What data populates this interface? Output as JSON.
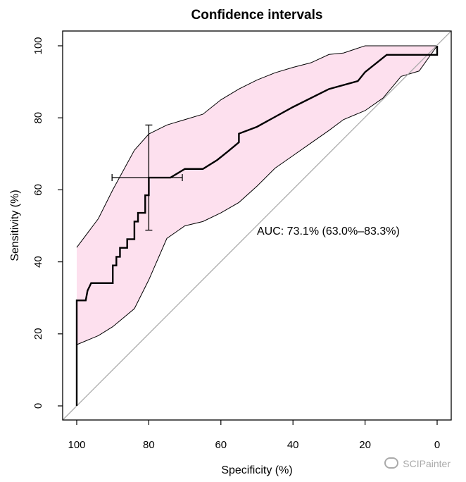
{
  "chart_data": {
    "type": "line",
    "title": "Confidence intervals",
    "xlabel": "Specificity (%)",
    "ylabel": "Sensitivity (%)",
    "xlim": [
      100,
      0
    ],
    "ylim": [
      0,
      100
    ],
    "x_reversed": true,
    "xticks": [
      100,
      80,
      60,
      40,
      20,
      0
    ],
    "yticks": [
      0,
      20,
      40,
      60,
      80,
      100
    ],
    "grid": false,
    "colors": {
      "band": "#fde0ee",
      "roc": "#000000",
      "diagonal": "#aaaaaa",
      "band_edge": "#000000"
    },
    "annotation": "AUC: 73.1% (63.0%–83.3%)",
    "roc": {
      "specificity": [
        100,
        100,
        100,
        97.5,
        97,
        96,
        90,
        90,
        89,
        89,
        88,
        88,
        86,
        86,
        84,
        84,
        83,
        83,
        81,
        81,
        80,
        80,
        74,
        70,
        65,
        61,
        58,
        55,
        55,
        50,
        40,
        30,
        22,
        20,
        14,
        0,
        0
      ],
      "sensitivity": [
        0,
        17,
        29.3,
        29.3,
        32,
        34.1,
        34.1,
        39,
        39,
        41.4,
        41.4,
        43.9,
        43.9,
        46.3,
        46.3,
        51.2,
        51.2,
        53.6,
        53.6,
        58.5,
        58.5,
        63.4,
        63.4,
        65.8,
        65.8,
        68.3,
        70.7,
        73.2,
        75.6,
        77.5,
        83,
        88,
        90.2,
        92.7,
        97.5,
        97.5,
        100
      ]
    },
    "ci_band": {
      "specificity": [
        100,
        94,
        90,
        84,
        80,
        75,
        70,
        65,
        60,
        55,
        50,
        45,
        40,
        35,
        30,
        26,
        20,
        15,
        10,
        5,
        0
      ],
      "upper": [
        44,
        52,
        60,
        71,
        75.5,
        78,
        79.5,
        81,
        85,
        88,
        90.5,
        92.5,
        94,
        95.3,
        97.6,
        98,
        100,
        100,
        100,
        100,
        100
      ],
      "lower": [
        17,
        19.5,
        22,
        27,
        35,
        46.5,
        50,
        51.2,
        53.6,
        56.5,
        61,
        66,
        69.5,
        73,
        76.5,
        79.5,
        82,
        85.5,
        91.5,
        93,
        100
      ]
    },
    "ci_crosshair": {
      "center": [
        80,
        63.4
      ],
      "specificity_range": [
        90.2,
        70.7
      ],
      "sensitivity_range": [
        48.8,
        78
      ]
    }
  },
  "watermark": "SCIPainter"
}
